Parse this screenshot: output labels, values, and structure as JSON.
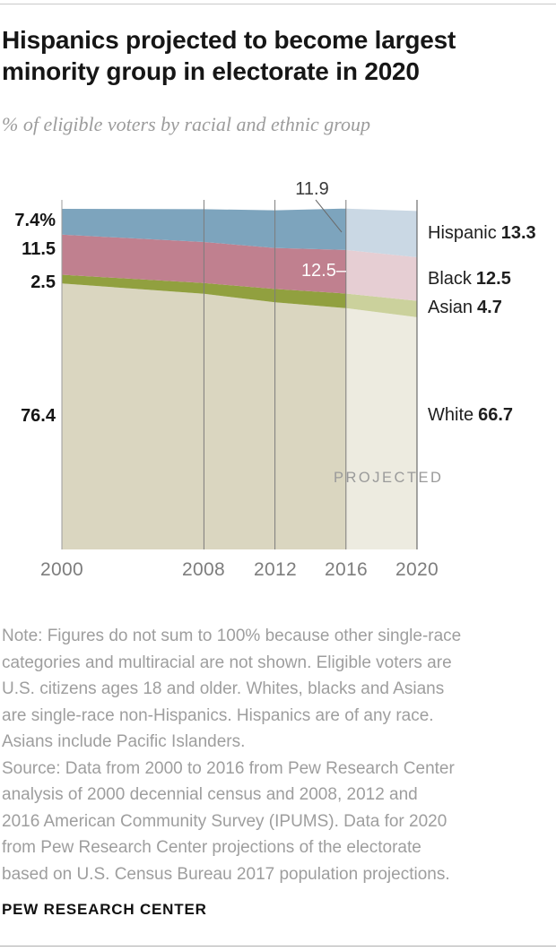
{
  "header": {
    "title_line1": "Hispanics projected to become largest",
    "title_line2": "minority group in electorate in 2020",
    "subtitle": "% of eligible voters by racial and ethnic group"
  },
  "chart_data": {
    "type": "area",
    "stacked": true,
    "title": "Hispanics projected to become largest minority group in electorate in 2020",
    "subtitle": "% of eligible voters by racial and ethnic group",
    "unit": "%",
    "x": [
      2000,
      2008,
      2012,
      2016,
      2020
    ],
    "x_tick_labels": [
      "2000",
      "2008",
      "2012",
      "2016",
      "2020"
    ],
    "ylim": [
      0,
      100
    ],
    "grid": "vertical",
    "projected_from_x": 2016,
    "projected_label": "PROJECTED",
    "series": [
      {
        "name": "White",
        "values": [
          76.4,
          73.4,
          71.0,
          69.3,
          66.7
        ],
        "color": "#dad6c0",
        "projected_color": "#edebe0",
        "start_label": "76.4",
        "end_label": "66.7"
      },
      {
        "name": "Asian",
        "values": [
          2.5,
          3.1,
          3.8,
          4.2,
          4.7
        ],
        "color": "#91a03f",
        "projected_color": "#cbd19c",
        "start_label": "2.5",
        "end_label": "4.7"
      },
      {
        "name": "Black",
        "values": [
          11.5,
          11.8,
          11.8,
          12.5,
          12.5
        ],
        "color": "#c0808f",
        "projected_color": "#e6ced3",
        "start_label": "11.5",
        "end_label": "12.5"
      },
      {
        "name": "Hispanic",
        "values": [
          7.4,
          9.4,
          10.8,
          11.9,
          13.3
        ],
        "color": "#7da4bd",
        "projected_color": "#cad8e4",
        "start_label": "7.4%",
        "end_label": "13.3"
      }
    ],
    "annotations": [
      {
        "text": "11.9",
        "series": "Hispanic",
        "x": 2016
      },
      {
        "text": "12.5–",
        "series": "Black",
        "x": 2016
      }
    ]
  },
  "footer": {
    "note_lines": [
      "Note: Figures do not sum to 100% because other single-race",
      "categories and multiracial are not shown. Eligible voters are",
      "U.S. citizens ages 18 and older. Whites, blacks and Asians",
      "are single-race non-Hispanics. Hispanics are of any race.",
      "Asians include Pacific Islanders.",
      "Source: Data from 2000 to 2016 from Pew Research Center",
      "analysis of 2000 decennial census and 2008, 2012 and",
      "2016 American Community Survey (IPUMS). Data for 2020",
      "from Pew Research Center projections of the electorate",
      "based on U.S. Census Bureau 2017 population projections."
    ],
    "brand": "PEW RESEARCH CENTER"
  }
}
